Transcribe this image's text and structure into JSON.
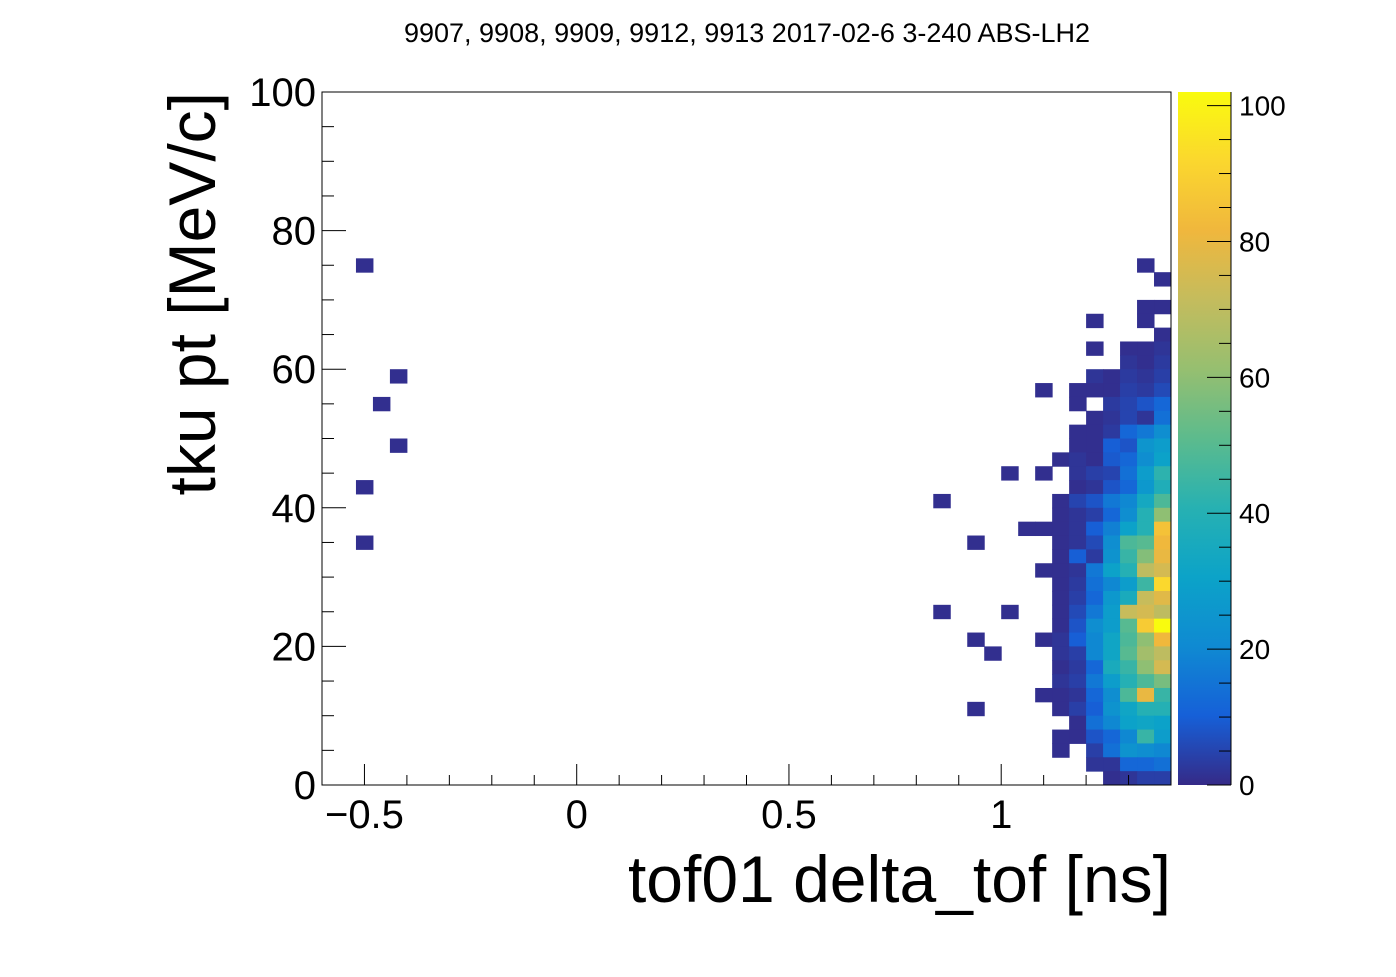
{
  "chart_data": {
    "type": "heatmap",
    "title": "9907, 9908, 9909, 9912, 9913 2017-02-6 3-240 ABS-LH2",
    "xlabel": "tof01 delta_tof [ns]",
    "ylabel": "tku pt [MeV/c]",
    "xlim": [
      -0.6,
      1.4
    ],
    "ylim": [
      0,
      100
    ],
    "x_ticks": [
      -0.5,
      0,
      0.5,
      1
    ],
    "x_tick_labels": [
      "−0.5",
      "0",
      "0.5",
      "1"
    ],
    "y_ticks": [
      0,
      20,
      40,
      60,
      80,
      100
    ],
    "y_tick_labels": [
      "0",
      "20",
      "40",
      "60",
      "80",
      "100"
    ],
    "bin_width_x": 0.04,
    "bin_height_y": 2,
    "colorbar": {
      "range": [
        0,
        102
      ],
      "ticks": [
        0,
        20,
        40,
        60,
        80,
        100
      ],
      "tick_labels": [
        "0",
        "20",
        "40",
        "60",
        "80",
        "100"
      ],
      "palette": [
        "#352a87",
        "#1660d8",
        "#0f8ad2",
        "#0ca3c8",
        "#27b1b2",
        "#5cbb8d",
        "#96bf70",
        "#c4bc5d",
        "#f0b73d",
        "#fbd72e",
        "#f9fb0e"
      ]
    },
    "cells": [
      [
        -0.5,
        75,
        1
      ],
      [
        -0.42,
        59,
        1
      ],
      [
        -0.46,
        55,
        1
      ],
      [
        -0.42,
        49,
        1
      ],
      [
        -0.5,
        43,
        1
      ],
      [
        -0.5,
        35,
        1
      ],
      [
        1.34,
        75,
        1
      ],
      [
        1.38,
        73,
        1
      ],
      [
        1.34,
        69,
        1
      ],
      [
        1.38,
        69,
        1
      ],
      [
        1.22,
        67,
        1
      ],
      [
        1.34,
        67,
        1
      ],
      [
        1.38,
        65,
        1
      ],
      [
        1.22,
        63,
        1
      ],
      [
        1.3,
        63,
        1
      ],
      [
        1.34,
        63,
        1
      ],
      [
        1.38,
        63,
        2
      ],
      [
        1.3,
        61,
        2
      ],
      [
        1.34,
        61,
        1
      ],
      [
        1.38,
        61,
        3
      ],
      [
        1.22,
        59,
        2
      ],
      [
        1.26,
        59,
        1
      ],
      [
        1.3,
        59,
        3
      ],
      [
        1.34,
        59,
        2
      ],
      [
        1.38,
        59,
        4
      ],
      [
        1.1,
        57,
        1
      ],
      [
        1.18,
        57,
        1
      ],
      [
        1.22,
        57,
        1
      ],
      [
        1.26,
        57,
        1
      ],
      [
        1.3,
        57,
        4
      ],
      [
        1.34,
        57,
        3
      ],
      [
        1.38,
        57,
        6
      ],
      [
        1.18,
        55,
        1
      ],
      [
        1.26,
        55,
        3
      ],
      [
        1.3,
        55,
        5
      ],
      [
        1.34,
        55,
        8
      ],
      [
        1.38,
        55,
        12
      ],
      [
        1.22,
        53,
        1
      ],
      [
        1.26,
        53,
        2
      ],
      [
        1.3,
        53,
        5
      ],
      [
        1.34,
        53,
        2
      ],
      [
        1.38,
        53,
        14
      ],
      [
        1.18,
        51,
        1
      ],
      [
        1.22,
        51,
        1
      ],
      [
        1.26,
        51,
        3
      ],
      [
        1.3,
        51,
        12
      ],
      [
        1.34,
        51,
        16
      ],
      [
        1.38,
        51,
        22
      ],
      [
        1.18,
        49,
        1
      ],
      [
        1.22,
        49,
        1
      ],
      [
        1.26,
        49,
        10
      ],
      [
        1.3,
        49,
        8
      ],
      [
        1.34,
        49,
        25
      ],
      [
        1.38,
        49,
        28
      ],
      [
        1.14,
        47,
        1
      ],
      [
        1.18,
        47,
        2
      ],
      [
        1.22,
        47,
        1
      ],
      [
        1.26,
        47,
        9
      ],
      [
        1.3,
        47,
        12
      ],
      [
        1.34,
        47,
        22
      ],
      [
        1.38,
        47,
        30
      ],
      [
        1.02,
        45,
        1
      ],
      [
        1.1,
        45,
        1
      ],
      [
        1.18,
        45,
        2
      ],
      [
        1.22,
        45,
        4
      ],
      [
        1.26,
        45,
        5
      ],
      [
        1.3,
        45,
        14
      ],
      [
        1.34,
        45,
        28
      ],
      [
        1.38,
        45,
        42
      ],
      [
        1.18,
        43,
        1
      ],
      [
        1.22,
        43,
        2
      ],
      [
        1.26,
        43,
        8
      ],
      [
        1.3,
        43,
        12
      ],
      [
        1.34,
        43,
        26
      ],
      [
        1.38,
        43,
        38
      ],
      [
        0.86,
        41,
        1
      ],
      [
        1.14,
        41,
        1
      ],
      [
        1.18,
        41,
        5
      ],
      [
        1.22,
        41,
        8
      ],
      [
        1.26,
        41,
        16
      ],
      [
        1.3,
        41,
        20
      ],
      [
        1.34,
        41,
        34
      ],
      [
        1.38,
        41,
        48
      ],
      [
        1.14,
        39,
        1
      ],
      [
        1.18,
        39,
        2
      ],
      [
        1.22,
        39,
        4
      ],
      [
        1.26,
        39,
        12
      ],
      [
        1.3,
        39,
        22
      ],
      [
        1.34,
        39,
        40
      ],
      [
        1.38,
        39,
        60
      ],
      [
        1.06,
        37,
        1
      ],
      [
        1.1,
        37,
        1
      ],
      [
        1.14,
        37,
        1
      ],
      [
        1.18,
        37,
        2
      ],
      [
        1.22,
        37,
        10
      ],
      [
        1.26,
        37,
        18
      ],
      [
        1.3,
        37,
        30
      ],
      [
        1.34,
        37,
        40
      ],
      [
        1.38,
        37,
        85
      ],
      [
        0.94,
        35,
        1
      ],
      [
        1.14,
        35,
        1
      ],
      [
        1.18,
        35,
        2
      ],
      [
        1.22,
        35,
        6
      ],
      [
        1.26,
        35,
        22
      ],
      [
        1.3,
        35,
        48
      ],
      [
        1.34,
        35,
        50
      ],
      [
        1.38,
        35,
        82
      ],
      [
        1.14,
        33,
        1
      ],
      [
        1.18,
        33,
        10
      ],
      [
        1.22,
        33,
        3
      ],
      [
        1.26,
        33,
        24
      ],
      [
        1.3,
        33,
        44
      ],
      [
        1.34,
        33,
        58
      ],
      [
        1.38,
        33,
        80
      ],
      [
        1.1,
        31,
        1
      ],
      [
        1.14,
        31,
        1
      ],
      [
        1.18,
        31,
        2
      ],
      [
        1.22,
        31,
        16
      ],
      [
        1.26,
        31,
        30
      ],
      [
        1.3,
        31,
        40
      ],
      [
        1.34,
        31,
        70
      ],
      [
        1.38,
        31,
        75
      ],
      [
        1.14,
        29,
        1
      ],
      [
        1.18,
        29,
        3
      ],
      [
        1.22,
        29,
        14
      ],
      [
        1.26,
        29,
        20
      ],
      [
        1.3,
        29,
        28
      ],
      [
        1.34,
        29,
        45
      ],
      [
        1.38,
        29,
        92
      ],
      [
        1.14,
        27,
        1
      ],
      [
        1.18,
        27,
        4
      ],
      [
        1.22,
        27,
        12
      ],
      [
        1.26,
        27,
        26
      ],
      [
        1.3,
        27,
        36
      ],
      [
        1.34,
        27,
        72
      ],
      [
        1.38,
        27,
        78
      ],
      [
        0.86,
        25,
        1
      ],
      [
        1.02,
        25,
        1
      ],
      [
        1.14,
        25,
        1
      ],
      [
        1.18,
        25,
        6
      ],
      [
        1.22,
        25,
        16
      ],
      [
        1.26,
        25,
        28
      ],
      [
        1.3,
        25,
        72
      ],
      [
        1.34,
        25,
        75
      ],
      [
        1.38,
        25,
        70
      ],
      [
        1.14,
        23,
        1
      ],
      [
        1.18,
        23,
        8
      ],
      [
        1.22,
        23,
        22
      ],
      [
        1.26,
        23,
        28
      ],
      [
        1.3,
        23,
        50
      ],
      [
        1.34,
        23,
        88
      ],
      [
        1.38,
        23,
        102
      ],
      [
        0.94,
        21,
        1
      ],
      [
        1.1,
        21,
        1
      ],
      [
        1.14,
        21,
        2
      ],
      [
        1.18,
        21,
        10
      ],
      [
        1.22,
        21,
        20
      ],
      [
        1.26,
        21,
        32
      ],
      [
        1.3,
        21,
        48
      ],
      [
        1.34,
        21,
        60
      ],
      [
        1.38,
        21,
        82
      ],
      [
        0.98,
        19,
        1
      ],
      [
        1.14,
        19,
        2
      ],
      [
        1.18,
        19,
        4
      ],
      [
        1.22,
        19,
        20
      ],
      [
        1.26,
        19,
        32
      ],
      [
        1.3,
        19,
        50
      ],
      [
        1.34,
        19,
        64
      ],
      [
        1.38,
        19,
        70
      ],
      [
        1.14,
        17,
        1
      ],
      [
        1.18,
        17,
        3
      ],
      [
        1.22,
        17,
        12
      ],
      [
        1.26,
        17,
        36
      ],
      [
        1.3,
        17,
        44
      ],
      [
        1.34,
        17,
        60
      ],
      [
        1.38,
        17,
        75
      ],
      [
        1.14,
        15,
        2
      ],
      [
        1.18,
        15,
        4
      ],
      [
        1.22,
        15,
        16
      ],
      [
        1.26,
        15,
        28
      ],
      [
        1.3,
        15,
        40
      ],
      [
        1.34,
        15,
        48
      ],
      [
        1.38,
        15,
        56
      ],
      [
        1.1,
        13,
        1
      ],
      [
        1.14,
        13,
        1
      ],
      [
        1.18,
        13,
        2
      ],
      [
        1.22,
        13,
        12
      ],
      [
        1.26,
        13,
        22
      ],
      [
        1.3,
        13,
        48
      ],
      [
        1.34,
        13,
        80
      ],
      [
        1.38,
        13,
        44
      ],
      [
        0.94,
        11,
        1
      ],
      [
        1.14,
        11,
        1
      ],
      [
        1.18,
        11,
        4
      ],
      [
        1.22,
        11,
        10
      ],
      [
        1.26,
        11,
        24
      ],
      [
        1.3,
        11,
        32
      ],
      [
        1.34,
        11,
        40
      ],
      [
        1.38,
        11,
        40
      ],
      [
        1.18,
        9,
        1
      ],
      [
        1.22,
        9,
        14
      ],
      [
        1.26,
        9,
        20
      ],
      [
        1.3,
        9,
        30
      ],
      [
        1.34,
        9,
        32
      ],
      [
        1.38,
        9,
        30
      ],
      [
        1.14,
        7,
        1
      ],
      [
        1.18,
        7,
        1
      ],
      [
        1.22,
        7,
        8
      ],
      [
        1.26,
        7,
        12
      ],
      [
        1.3,
        7,
        20
      ],
      [
        1.34,
        7,
        44
      ],
      [
        1.38,
        7,
        28
      ],
      [
        1.14,
        5,
        1
      ],
      [
        1.22,
        5,
        4
      ],
      [
        1.26,
        5,
        14
      ],
      [
        1.3,
        5,
        24
      ],
      [
        1.34,
        5,
        22
      ],
      [
        1.38,
        5,
        20
      ],
      [
        1.22,
        3,
        2
      ],
      [
        1.26,
        3,
        2
      ],
      [
        1.3,
        3,
        12
      ],
      [
        1.34,
        3,
        12
      ],
      [
        1.38,
        3,
        14
      ],
      [
        1.26,
        1,
        1
      ],
      [
        1.3,
        1,
        2
      ],
      [
        1.34,
        1,
        4
      ],
      [
        1.38,
        1,
        4
      ]
    ]
  }
}
